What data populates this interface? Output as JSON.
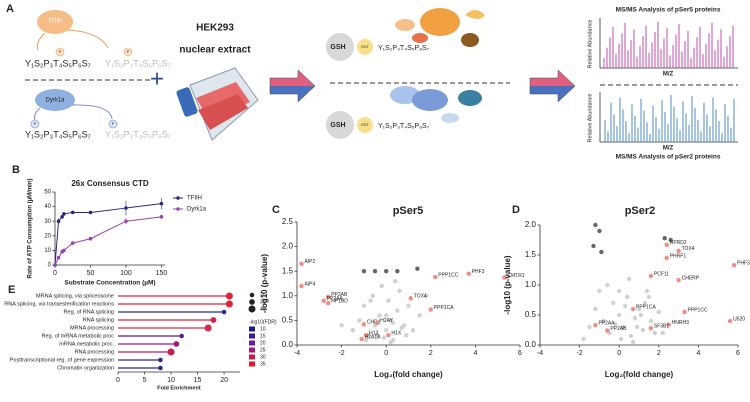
{
  "diagram": {
    "label": "A",
    "kinase_1": "TFIIH",
    "kinase_2": "Dyrk1a",
    "substrate": "Y₁S₂P₃T₄S₅P₆S₇",
    "phospho": "P",
    "plus": "+",
    "cell_line": "HEK293",
    "extract": "nuclear extract",
    "resin": "GSH",
    "tag": "GST",
    "ms_top": {
      "title": "MS/MS Analysis of pSer5 proteins",
      "y_label": "Relative Abundance",
      "x_label": "M/Z"
    },
    "ms_bottom": {
      "title": "MS/MS Analysis of pSer2 proteins",
      "y_label": "Relative Abundance",
      "x_label": "M/Z"
    }
  },
  "chart_data": [
    {
      "type": "line",
      "label": "B",
      "title": "26x Consensus CTD",
      "x_label": "Substrate Concentration (µM)",
      "y_label": "Rate of ATP Consumption (µM/min)",
      "x": [
        0,
        5,
        10,
        12.5,
        25,
        50,
        100,
        150
      ],
      "series": [
        {
          "name": "TFIIH",
          "color": "#2a2a7a",
          "values": [
            0,
            30,
            33,
            35,
            36,
            36,
            39,
            42
          ],
          "errors": [
            null,
            2,
            1,
            1,
            1,
            1,
            5,
            4
          ]
        },
        {
          "name": "Dyrk1a",
          "color": "#9b3fb5",
          "values": [
            0,
            5,
            9,
            10,
            15,
            18,
            30,
            33
          ],
          "errors": [
            null,
            1,
            1,
            1,
            1,
            1,
            2,
            1
          ]
        }
      ],
      "xlim": [
        0,
        155
      ],
      "xticks": [
        0,
        50,
        100,
        150
      ],
      "ylim": [
        0,
        50
      ],
      "yticks": [
        0,
        10,
        20,
        30,
        40,
        50
      ],
      "legend": "right"
    },
    {
      "type": "scatter",
      "label": "C",
      "title": "pSer5",
      "x_label": "Log₂(fold change)",
      "y_label": "-log10 (p-value)",
      "series": [
        {
          "color": "#cccccc",
          "x": [
            -1.5,
            -1.2,
            -1,
            -0.8,
            -0.6,
            -0.5,
            -0.3,
            -0.2,
            0,
            0.1,
            0.2,
            0.3,
            0.5,
            0.6,
            0.8,
            1,
            1.2,
            1.5,
            -0.4,
            0,
            0.4,
            -0.7,
            0.9,
            0.2,
            -0.1,
            1.8,
            -2,
            0.7,
            -0.9,
            0.3
          ],
          "values": [
            0.3,
            0.5,
            0.8,
            0.2,
            1.0,
            0.4,
            0.6,
            1.2,
            0.3,
            0.9,
            0.5,
            0.1,
            0.7,
            1.1,
            0.4,
            0.8,
            0.3,
            0.6,
            0.2,
            0.6,
            1.3,
            0.9,
            0.2,
            0.05,
            0.15,
            1.0,
            0.4,
            0.35,
            0.1,
            0.45
          ]
        },
        {
          "color": "#555555",
          "x": [
            -1,
            0,
            0.5,
            1.4,
            -0.5
          ],
          "values": [
            1.5,
            1.5,
            1.5,
            1.55,
            1.5
          ]
        },
        {
          "color": "#f08070",
          "x": [
            -3.8,
            -3.8,
            -2.6,
            -2.8,
            -2.6,
            -1.0,
            -0.4,
            -0.9,
            -1.1,
            0.1,
            1.1,
            2.0,
            2.2,
            3.7,
            5.3
          ],
          "values": [
            1.65,
            1.2,
            0.98,
            0.9,
            0.85,
            0.42,
            0.45,
            0.2,
            0.12,
            0.2,
            0.95,
            0.72,
            1.38,
            1.45,
            1.37
          ],
          "labels": [
            "AIP2",
            "AIP4",
            "PP2AB",
            "PP2AA",
            "HP1BD",
            "CHD1",
            "H2AY",
            "H13",
            "H2A1A",
            "H1X",
            "TOX4",
            "PPP1CA",
            "PPP1CC",
            "PHF3",
            "CMTR1"
          ]
        }
      ],
      "xlim": [
        -4,
        6
      ],
      "xticks": [
        -4,
        -2,
        0,
        2,
        4,
        6
      ],
      "ylim": [
        0,
        2.5
      ],
      "yticks": [
        {
          "value": 0,
          "label": "0.0"
        },
        {
          "value": 0.5,
          "label": "0.5"
        },
        {
          "value": 1,
          "label": "1.0"
        },
        {
          "value": 1.5,
          "label": "1.5"
        },
        {
          "value": 2,
          "label": "2.0"
        },
        {
          "value": 2.5,
          "label": "2.5"
        }
      ]
    },
    {
      "type": "scatter",
      "label": "D",
      "title": "pSer2",
      "x_label": "Log₂(fold change)",
      "y_label": "-log10 (p-value)",
      "series": [
        {
          "color": "#cccccc",
          "x": [
            -1.5,
            -1.2,
            -1,
            -0.8,
            -0.5,
            -0.3,
            0,
            0.2,
            0.4,
            0.6,
            0.8,
            1,
            1.2,
            1.4,
            1.6,
            1.8,
            2,
            -0.6,
            0.1,
            0.5,
            0.9,
            1.3,
            -0.2,
            0.7,
            1.1,
            2.2,
            -1.8,
            0.3,
            1.5,
            0.0
          ],
          "values": [
            0.3,
            0.6,
            0.9,
            0.4,
            0.2,
            0.7,
            0.5,
            0.3,
            0.8,
            0.15,
            0.45,
            0.6,
            0.25,
            0.9,
            0.4,
            0.2,
            0.55,
            1.0,
            0.1,
            1.1,
            0.3,
            0.7,
            0.35,
            0.05,
            0.5,
            0.2,
            0.1,
            0.65,
            0.8,
            0.9
          ]
        },
        {
          "color": "#555555",
          "x": [
            -1.2,
            -1.0,
            -1.3,
            -0.9,
            2.3,
            2.6
          ],
          "values": [
            2.0,
            1.9,
            1.65,
            1.55,
            1.78,
            1.75
          ]
        },
        {
          "color": "#f08070",
          "x": [
            2.4,
            3.0,
            2.4,
            5.8,
            1.6,
            3.0,
            0.7,
            3.3,
            5.6,
            2.5,
            1.6,
            -1.2,
            -0.6
          ],
          "values": [
            1.67,
            1.57,
            1.45,
            1.33,
            1.15,
            1.08,
            0.6,
            0.55,
            0.4,
            0.34,
            0.28,
            0.33,
            0.24
          ],
          "labels": [
            "RPRD2",
            "TOX4",
            "PHRF1",
            "PHF3",
            "PCF11",
            "CHERP",
            "PPP1CA",
            "PPP1CC",
            "U520",
            "HNRH3",
            "SF3B1",
            "PP2AA",
            "PP2AB"
          ]
        }
      ],
      "xlim": [
        -4,
        6
      ],
      "xticks": [
        -4,
        -2,
        0,
        2,
        4,
        6
      ],
      "ylim": [
        0,
        2
      ],
      "yticks": [
        {
          "value": 0,
          "label": "0.0"
        },
        {
          "value": 0.5,
          "label": "0.5"
        },
        {
          "value": 1,
          "label": "1.0"
        },
        {
          "value": 1.5,
          "label": "1.5"
        },
        {
          "value": 2,
          "label": "2.0"
        }
      ]
    },
    {
      "type": "lollipop",
      "label": "E",
      "x_label": "Fold Enrichment",
      "categories": [
        "MRNA splicing, via spliceosome",
        "RNA splicing, via transesterification reactions",
        "Reg. of RNA splicing",
        "RNA splicing",
        "MRNA processing",
        "Reg. of mRNA metabolic proc",
        "mRNA metabolic proc.",
        "RNA processing",
        "Posttranscriptional reg. of gene expression",
        "Chromatin organization"
      ],
      "values": [
        21,
        21,
        20,
        18,
        17,
        12,
        11,
        10,
        8,
        8
      ],
      "sizes": [
        40,
        40,
        20,
        30,
        40,
        20,
        30,
        40,
        20,
        20
      ],
      "colors": [
        "#e0213a",
        "#e0213a",
        "#2a2a8a",
        "#d8203f",
        "#d82a48",
        "#5a1a9a",
        "#a01a7a",
        "#c81a50",
        "#2a2a8a",
        "#2a2a8a"
      ],
      "xlim": [
        0,
        23
      ],
      "xticks": [
        0,
        5,
        10,
        15,
        20
      ],
      "size_legend": {
        "values": [
          20,
          30,
          40
        ]
      },
      "color_legend": {
        "title": "-log10(FDR)",
        "values": [
          10,
          15,
          20,
          25,
          30,
          35
        ],
        "colors": [
          "#1a1a8c",
          "#3b1a9a",
          "#6b1aa0",
          "#a01a7a",
          "#c81a50",
          "#e01a2a"
        ]
      }
    }
  ]
}
